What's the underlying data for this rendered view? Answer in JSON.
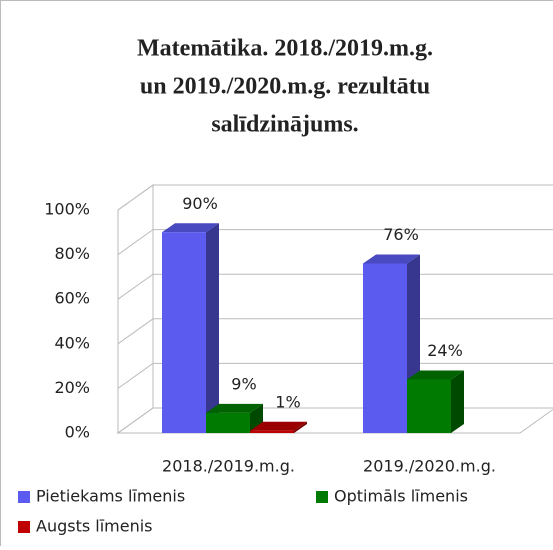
{
  "chart_data": {
    "type": "bar3d",
    "title": [
      "Matemātika. 2018./2019.m.g.",
      "un 2019./2020.m.g.  rezultātu",
      "salīdzinājums."
    ],
    "categories": [
      "2018./2019.m.g.",
      "2019./2020.m.g."
    ],
    "series": [
      {
        "name": "Pietiekams līmenis",
        "color": "#5b5bf0",
        "values": [
          90,
          76
        ],
        "value_labels": [
          "90%",
          "76%"
        ]
      },
      {
        "name": "Optimāls līmenis",
        "color": "#007a00",
        "values": [
          9,
          24
        ],
        "value_labels": [
          "9%",
          "24%"
        ]
      },
      {
        "name": "Augsts līmenis",
        "color": "#c00000",
        "values": [
          1,
          null
        ],
        "value_labels": [
          "1%",
          null
        ]
      }
    ],
    "ylim": [
      0,
      100
    ],
    "yticks": [
      {
        "value": 0,
        "label": "0%"
      },
      {
        "value": 20,
        "label": "20%"
      },
      {
        "value": 40,
        "label": "40%"
      },
      {
        "value": 60,
        "label": "60%"
      },
      {
        "value": 80,
        "label": "80%"
      },
      {
        "value": 100,
        "label": "100%"
      }
    ],
    "grid": true
  }
}
